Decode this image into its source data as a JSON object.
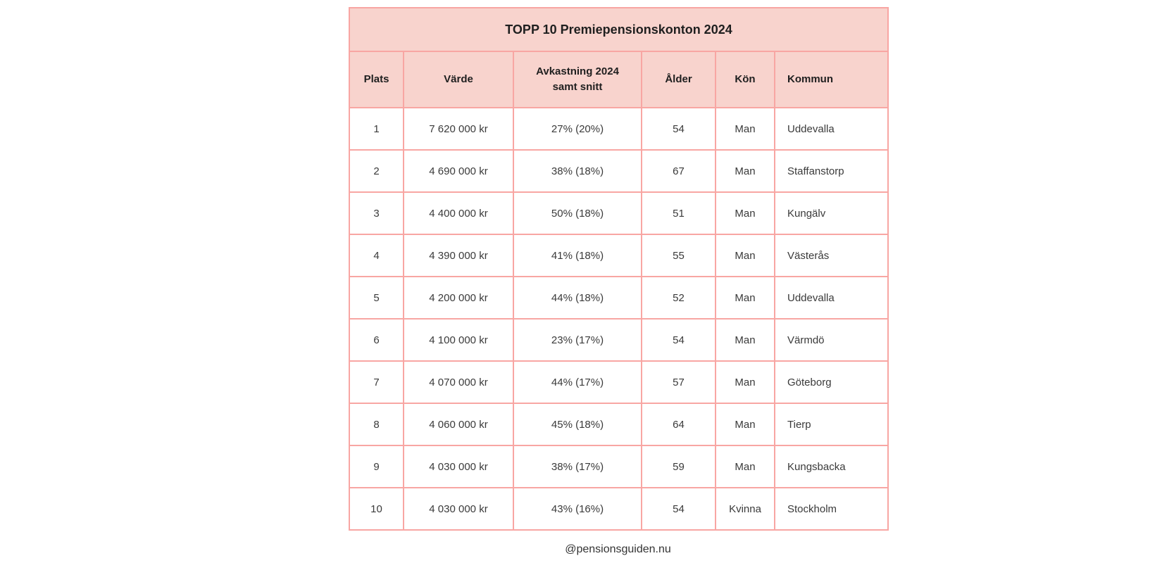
{
  "colors": {
    "table_border": "#f8a6a3",
    "header_background": "#f8d3cd",
    "body_background": "#ffffff",
    "header_text": "#1f1f1f",
    "body_text": "#3a3a3a",
    "footer_text": "#333333"
  },
  "chart_data": {
    "type": "table",
    "title": "TOPP 10 Premiepensionskonton 2024",
    "columns": [
      {
        "key": "plats",
        "label": "Plats"
      },
      {
        "key": "varde",
        "label": "Värde"
      },
      {
        "key": "avkastning",
        "label": "Avkastning 2024\nsamt snitt"
      },
      {
        "key": "alder",
        "label": "Ålder"
      },
      {
        "key": "kon",
        "label": "Kön"
      },
      {
        "key": "kommun",
        "label": "Kommun"
      }
    ],
    "rows": [
      {
        "plats": "1",
        "varde": "7 620 000 kr",
        "avkastning": "27% (20%)",
        "alder": "54",
        "kon": "Man",
        "kommun": "Uddevalla"
      },
      {
        "plats": "2",
        "varde": "4 690 000 kr",
        "avkastning": "38% (18%)",
        "alder": "67",
        "kon": "Man",
        "kommun": "Staffanstorp"
      },
      {
        "plats": "3",
        "varde": "4 400 000 kr",
        "avkastning": "50% (18%)",
        "alder": "51",
        "kon": "Man",
        "kommun": "Kungälv"
      },
      {
        "plats": "4",
        "varde": "4 390 000 kr",
        "avkastning": "41% (18%)",
        "alder": "55",
        "kon": "Man",
        "kommun": "Västerås"
      },
      {
        "plats": "5",
        "varde": "4 200 000 kr",
        "avkastning": "44% (18%)",
        "alder": "52",
        "kon": "Man",
        "kommun": "Uddevalla"
      },
      {
        "plats": "6",
        "varde": "4 100 000 kr",
        "avkastning": "23% (17%)",
        "alder": "54",
        "kon": "Man",
        "kommun": "Värmdö"
      },
      {
        "plats": "7",
        "varde": "4 070 000 kr",
        "avkastning": "44% (17%)",
        "alder": "57",
        "kon": "Man",
        "kommun": "Göteborg"
      },
      {
        "plats": "8",
        "varde": "4 060 000 kr",
        "avkastning": "45% (18%)",
        "alder": "64",
        "kon": "Man",
        "kommun": "Tierp"
      },
      {
        "plats": "9",
        "varde": "4 030 000 kr",
        "avkastning": "38% (17%)",
        "alder": "59",
        "kon": "Man",
        "kommun": "Kungsbacka"
      },
      {
        "plats": "10",
        "varde": "4 030 000 kr",
        "avkastning": "43% (16%)",
        "alder": "54",
        "kon": "Kvinna",
        "kommun": "Stockholm"
      }
    ],
    "footer": "@pensionsguiden.nu"
  }
}
